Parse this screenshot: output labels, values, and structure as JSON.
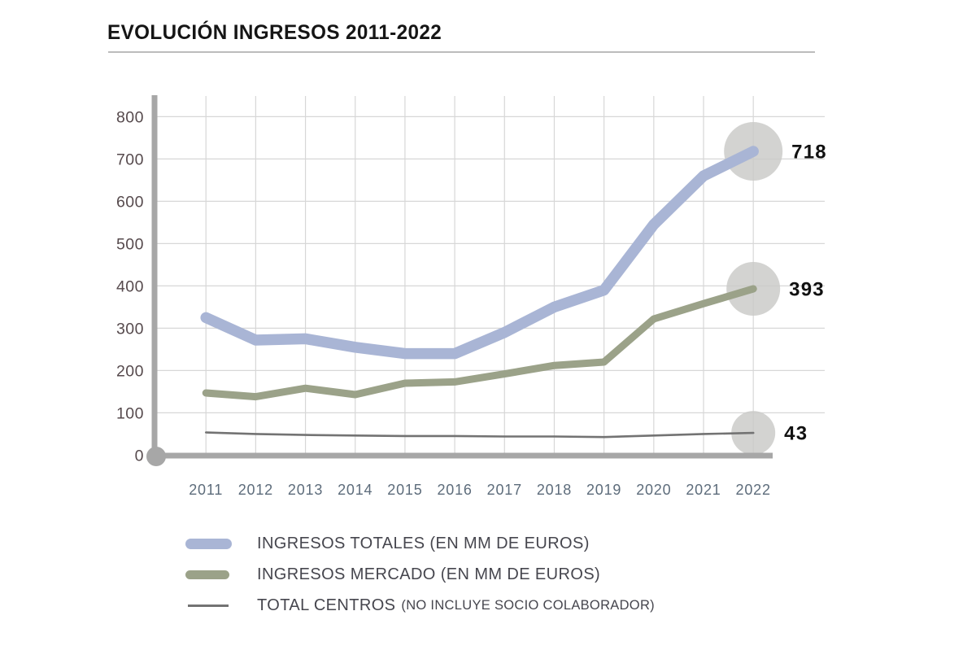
{
  "title": "EVOLUCIÓN INGRESOS 2011-2022",
  "colors": {
    "axis": "#a7a7a7",
    "grid": "#d7d7d7",
    "y_tick_text": "#564a4d",
    "x_tick_text": "#5d6c7b",
    "end_label_text": "#111111",
    "endpoint_circle": "#c9c9c7",
    "legend_text": "#46464e",
    "title_text": "#151515"
  },
  "chart_data": {
    "type": "line",
    "x": [
      2011,
      2012,
      2013,
      2014,
      2015,
      2016,
      2017,
      2018,
      2019,
      2020,
      2021,
      2022
    ],
    "y_ticks": [
      0,
      100,
      200,
      300,
      400,
      500,
      600,
      700,
      800
    ],
    "ylim": [
      0,
      800
    ],
    "xlabel": "",
    "ylabel": "",
    "grid": true,
    "legend_position": "bottom-left",
    "series": [
      {
        "name": "ingresos_totales",
        "legend_label": "INGRESOS TOTALES (EN MM DE EUROS)",
        "legend_sublabel": "",
        "color": "#a9b5d5",
        "values": [
          325,
          272,
          275,
          255,
          240,
          240,
          290,
          350,
          390,
          545,
          660,
          718
        ],
        "end_label": "718"
      },
      {
        "name": "ingresos_mercado",
        "legend_label": "INGRESOS MERCADO (EN MM DE EUROS)",
        "legend_sublabel": "",
        "color": "#9ba289",
        "values": [
          147,
          138,
          158,
          143,
          170,
          173,
          192,
          212,
          220,
          322,
          358,
          393
        ],
        "end_label": "393"
      },
      {
        "name": "total_centros",
        "legend_label": "TOTAL CENTROS",
        "legend_sublabel": "(NO INCLUYE SOCIO COLABORADOR)",
        "color": "#737373",
        "values": [
          44,
          41,
          39,
          38,
          37,
          37,
          36,
          36,
          35,
          38,
          41,
          43
        ],
        "end_label": "43",
        "not_to_scale": true
      }
    ]
  }
}
